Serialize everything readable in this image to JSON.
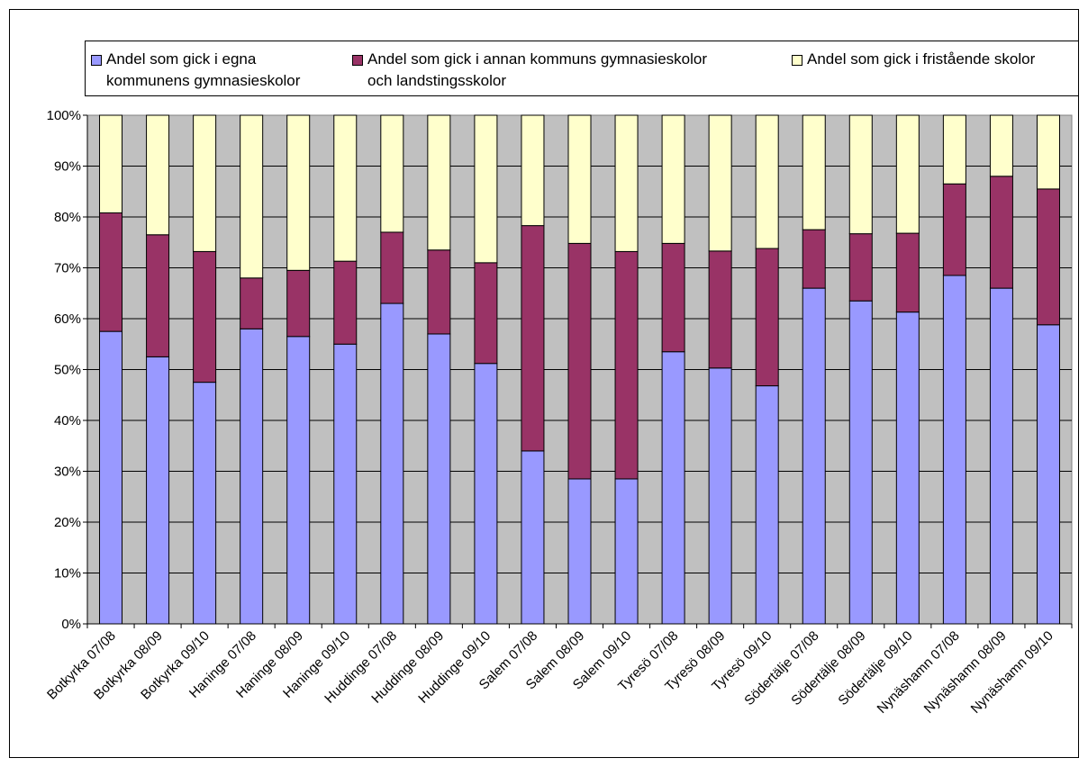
{
  "chart_data": {
    "type": "bar",
    "stacked": "percent",
    "categories": [
      "Botkyrka 07/08",
      "Botkyrka 08/09",
      "Botkyrka 09/10",
      "Haninge 07/08",
      "Haninge 08/09",
      "Haninge 09/10",
      "Huddinge 07/08",
      "Huddinge 08/09",
      "Huddinge 09/10",
      "Salem 07/08",
      "Salem 08/09",
      "Salem 09/10",
      "Tyresö 07/08",
      "Tyresö 08/09",
      "Tyresö 09/10",
      "Södertälje 07/08",
      "Södertälje 08/09",
      "Södertälje 09/10",
      "Nynäshamn 07/08",
      "Nynäshamn 08/09",
      "Nynäshamn 09/10"
    ],
    "series": [
      {
        "name": "Andel som gick i egna\nkommunens gymnasieskolor",
        "color": "#9999ff",
        "values": [
          0.575,
          0.525,
          0.475,
          0.58,
          0.565,
          0.55,
          0.63,
          0.57,
          0.512,
          0.34,
          0.285,
          0.285,
          0.535,
          0.503,
          0.468,
          0.66,
          0.635,
          0.613,
          0.685,
          0.66,
          0.588
        ]
      },
      {
        "name": "Andel som gick i annan kommuns gymnasieskolor\noch landstingsskolor",
        "color": "#993366",
        "values": [
          0.233,
          0.24,
          0.257,
          0.1,
          0.13,
          0.163,
          0.14,
          0.165,
          0.198,
          0.443,
          0.463,
          0.447,
          0.213,
          0.23,
          0.27,
          0.115,
          0.132,
          0.155,
          0.18,
          0.22,
          0.267
        ]
      },
      {
        "name": "Andel som gick i fristående skolor",
        "color": "#ffffcc",
        "values": [
          0.192,
          0.235,
          0.268,
          0.32,
          0.305,
          0.287,
          0.23,
          0.265,
          0.29,
          0.217,
          0.252,
          0.268,
          0.252,
          0.267,
          0.262,
          0.225,
          0.233,
          0.232,
          0.135,
          0.12,
          0.145
        ]
      }
    ],
    "y_ticks": [
      "0%",
      "10%",
      "20%",
      "30%",
      "40%",
      "50%",
      "60%",
      "70%",
      "80%",
      "90%",
      "100%"
    ],
    "ylim": [
      0,
      1
    ],
    "grid": true,
    "legend_position": "top",
    "plot_background": "#c0c0c0",
    "title": "",
    "xlabel": "",
    "ylabel": ""
  }
}
